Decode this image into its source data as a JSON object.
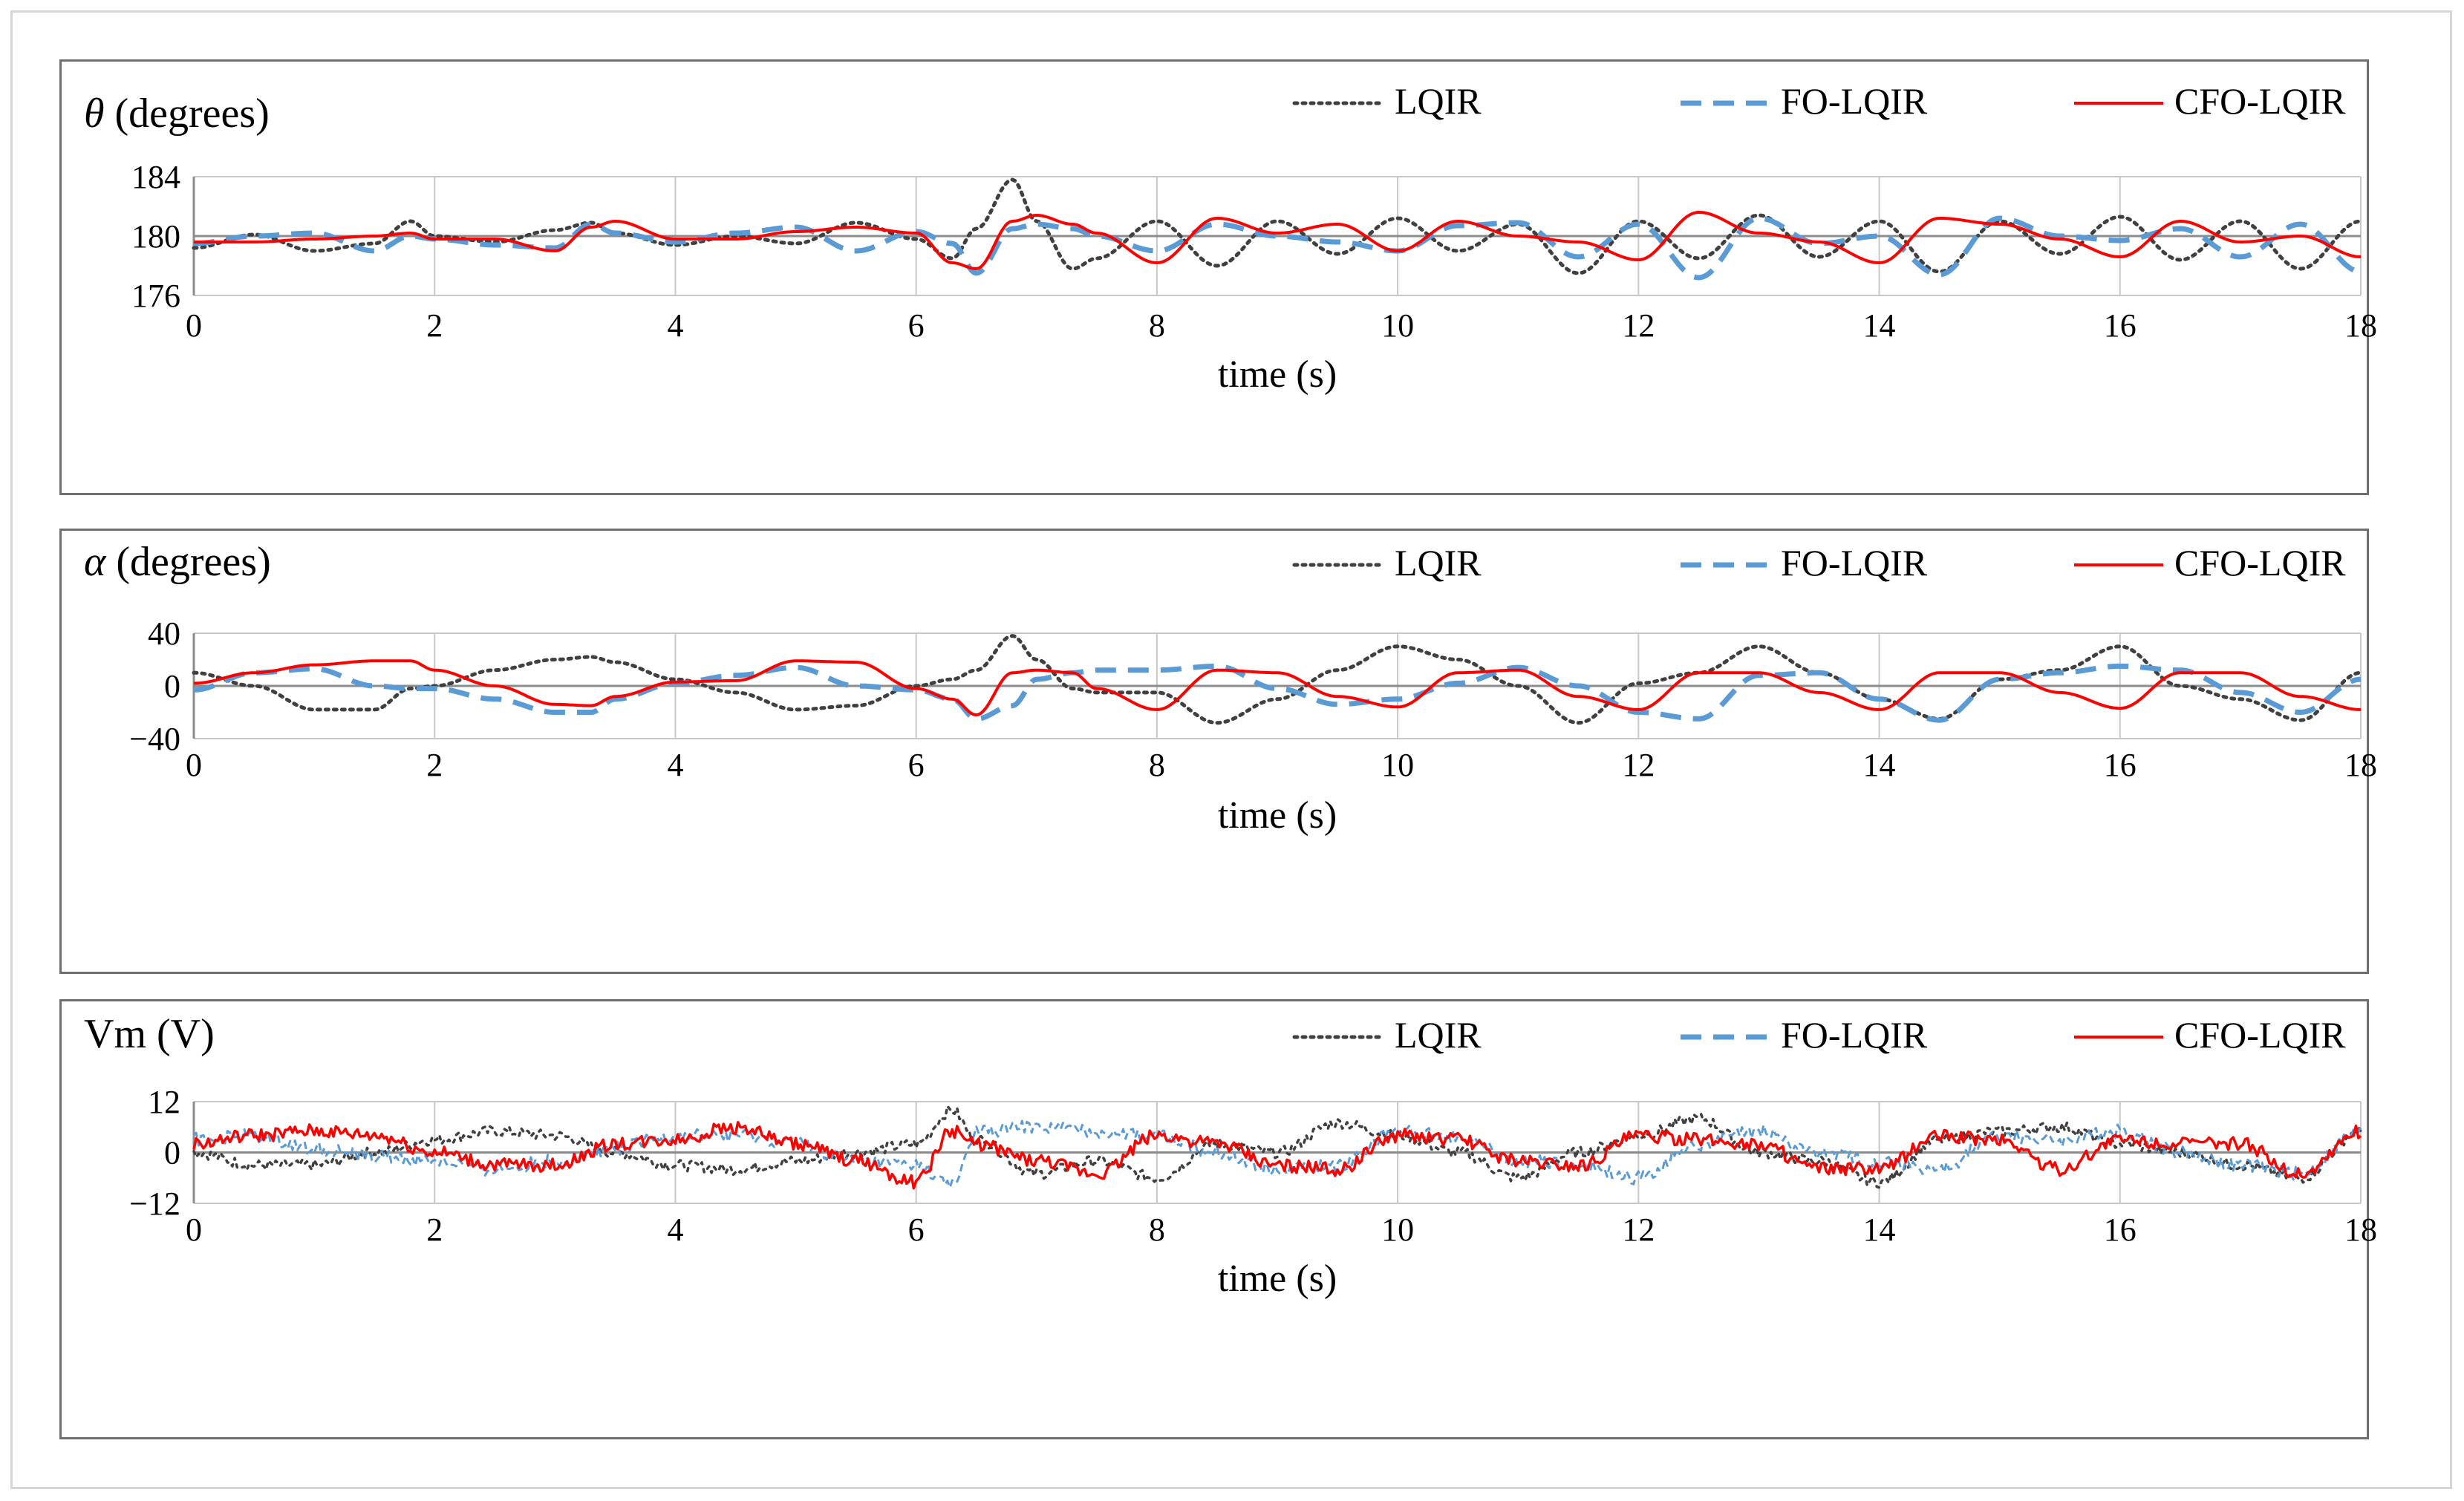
{
  "colors": {
    "lqir": "#404040",
    "fo_lqir": "#5b9bd5",
    "cfo_lqir": "#ff0000",
    "grid": "#c8c8c8",
    "zero_line": "#8c8c8c",
    "frame": "#6e6e6e"
  },
  "legend": [
    "LQIR",
    "FO-LQIR",
    "CFO-LQIR"
  ],
  "chart_data": [
    {
      "type": "line",
      "ylabel_symbol": "θ",
      "ylabel_unit": "(degrees)",
      "xlabel": "time (s)",
      "xlim": [
        0,
        18
      ],
      "ylim": [
        176,
        184
      ],
      "xticks": [
        "0",
        "2",
        "4",
        "6",
        "8",
        "10",
        "12",
        "14",
        "16",
        "18"
      ],
      "yticks": [
        "176",
        "180",
        "184"
      ],
      "x": [
        0,
        0.5,
        1,
        1.5,
        1.8,
        2,
        2.5,
        3,
        3.3,
        3.5,
        4,
        4.5,
        5,
        5.5,
        6,
        6.3,
        6.5,
        6.8,
        7,
        7.3,
        7.5,
        8,
        8.5,
        9,
        9.5,
        10,
        10.5,
        11,
        11.5,
        12,
        12.5,
        13,
        13.5,
        14,
        14.5,
        15,
        15.5,
        16,
        16.5,
        17,
        17.5,
        18
      ],
      "series": [
        {
          "name": "LQIR",
          "style": "dotted",
          "values": [
            179.2,
            180.1,
            179.0,
            179.5,
            181.0,
            180.0,
            179.6,
            180.4,
            180.9,
            180.2,
            179.4,
            180.0,
            179.5,
            180.9,
            179.8,
            178.5,
            180.5,
            183.8,
            181.0,
            177.8,
            178.5,
            181.0,
            178.0,
            181.0,
            178.8,
            181.2,
            179.0,
            180.8,
            177.5,
            181.0,
            178.5,
            181.4,
            178.6,
            181.0,
            177.6,
            181.0,
            178.8,
            181.3,
            178.4,
            181.0,
            177.8,
            181.0
          ]
        },
        {
          "name": "FO-LQIR",
          "style": "dashed",
          "values": [
            179.5,
            180.0,
            180.2,
            179.0,
            180.0,
            179.8,
            179.4,
            179.2,
            180.8,
            180.2,
            179.6,
            180.2,
            180.6,
            179.0,
            180.3,
            179.5,
            177.5,
            180.5,
            180.8,
            180.5,
            180.0,
            179.0,
            180.8,
            180.0,
            179.6,
            179.0,
            180.7,
            180.9,
            178.6,
            180.8,
            177.2,
            181.2,
            179.5,
            180.0,
            177.4,
            181.2,
            180.0,
            179.7,
            180.5,
            178.6,
            180.8,
            177.6
          ]
        },
        {
          "name": "CFO-LQIR",
          "style": "solid",
          "values": [
            179.6,
            179.6,
            179.8,
            180.0,
            180.2,
            179.8,
            179.8,
            179.0,
            180.6,
            181.0,
            179.8,
            179.8,
            180.3,
            180.6,
            180.2,
            178.2,
            177.8,
            181.0,
            181.4,
            180.8,
            180.2,
            178.2,
            181.2,
            180.2,
            180.8,
            179.0,
            181.0,
            180.0,
            179.6,
            178.4,
            181.6,
            180.2,
            179.6,
            178.2,
            181.2,
            180.8,
            179.8,
            178.6,
            181.0,
            179.6,
            180.0,
            178.6
          ]
        }
      ]
    },
    {
      "type": "line",
      "ylabel_symbol": "α",
      "ylabel_unit": "(degrees)",
      "xlabel": "time (s)",
      "xlim": [
        0,
        18
      ],
      "ylim": [
        -40,
        40
      ],
      "xticks": [
        "0",
        "2",
        "4",
        "6",
        "8",
        "10",
        "12",
        "14",
        "16",
        "18"
      ],
      "yticks": [
        "−40",
        "0",
        "40"
      ],
      "x": [
        0,
        0.5,
        1,
        1.5,
        1.8,
        2,
        2.5,
        3,
        3.3,
        3.5,
        4,
        4.5,
        5,
        5.5,
        6,
        6.3,
        6.5,
        6.8,
        7,
        7.3,
        7.5,
        8,
        8.5,
        9,
        9.5,
        10,
        10.5,
        11,
        11.5,
        12,
        12.5,
        13,
        13.5,
        14,
        14.5,
        15,
        15.5,
        16,
        16.5,
        17,
        17.5,
        18
      ],
      "series": [
        {
          "name": "LQIR",
          "style": "dotted",
          "values": [
            10,
            0,
            -18,
            -18,
            -2,
            0,
            12,
            20,
            22,
            18,
            5,
            -5,
            -18,
            -15,
            0,
            5,
            12,
            38,
            20,
            -2,
            -5,
            -5,
            -28,
            -10,
            12,
            30,
            20,
            0,
            -28,
            2,
            10,
            30,
            10,
            -10,
            -25,
            5,
            12,
            30,
            0,
            -10,
            -26,
            10
          ]
        },
        {
          "name": "FO-LQIR",
          "style": "dashed",
          "values": [
            -3,
            10,
            13,
            0,
            -2,
            -2,
            -10,
            -20,
            -20,
            -10,
            2,
            8,
            14,
            0,
            -3,
            -10,
            -25,
            -15,
            5,
            10,
            12,
            12,
            15,
            -2,
            -14,
            -10,
            2,
            14,
            0,
            -20,
            -25,
            8,
            10,
            -10,
            -26,
            5,
            10,
            15,
            12,
            -5,
            -20,
            5
          ]
        },
        {
          "name": "CFO-LQIR",
          "style": "solid",
          "values": [
            2,
            10,
            16,
            19,
            19,
            12,
            0,
            -14,
            -15,
            -8,
            3,
            4,
            19,
            18,
            -2,
            -10,
            -22,
            10,
            12,
            10,
            -2,
            -18,
            12,
            10,
            -8,
            -16,
            10,
            12,
            -8,
            -18,
            10,
            10,
            -5,
            -18,
            10,
            10,
            -5,
            -17,
            10,
            10,
            -8,
            -18
          ]
        }
      ]
    },
    {
      "type": "line",
      "ylabel_text": "Vm (V)",
      "xlabel": "time (s)",
      "xlim": [
        0,
        18
      ],
      "ylim": [
        -12,
        12
      ],
      "xticks": [
        "0",
        "2",
        "4",
        "6",
        "8",
        "10",
        "12",
        "14",
        "16",
        "18"
      ],
      "yticks": [
        "−12",
        "0",
        "12"
      ],
      "x": [
        0,
        0.5,
        1,
        1.5,
        2,
        2.5,
        3,
        3.5,
        4,
        4.5,
        5,
        5.5,
        6,
        6.3,
        6.5,
        7,
        7.5,
        8,
        8.5,
        9,
        9.5,
        10,
        10.5,
        11,
        11.5,
        12,
        12.5,
        13,
        13.5,
        14,
        14.5,
        15,
        15.5,
        16,
        16.5,
        17,
        17.5,
        18
      ],
      "series": [
        {
          "name": "LQIR",
          "style": "dotted",
          "noise": 1.3,
          "values": [
            0,
            -3,
            -3,
            0,
            3,
            5,
            4,
            0,
            -3,
            -4,
            -2,
            0,
            2,
            10,
            3,
            -5,
            -2,
            -6,
            2,
            0,
            7,
            4,
            0,
            -6,
            0,
            4,
            8,
            0,
            -2,
            -7,
            3,
            5,
            6,
            2,
            0,
            -3,
            -6,
            5
          ]
        },
        {
          "name": "FO-LQIR",
          "style": "dashed",
          "noise": 1.6,
          "values": [
            3,
            4,
            1,
            -1,
            -2,
            -4,
            -2,
            1,
            4,
            4,
            2,
            -2,
            -3,
            -8,
            5,
            6,
            5,
            4,
            0,
            -4,
            -3,
            5,
            4,
            -2,
            -3,
            -6,
            2,
            5,
            0,
            -2,
            -4,
            4,
            3,
            5,
            0,
            -3,
            -5,
            5
          ]
        },
        {
          "name": "CFO-LQIR",
          "style": "solid",
          "noise": 1.6,
          "values": [
            2,
            4,
            5,
            4,
            0,
            -3,
            -3,
            2,
            3,
            6,
            2,
            -2,
            -7,
            5,
            2,
            -2,
            -5,
            4,
            2,
            -3,
            -4,
            4,
            3,
            -2,
            -3,
            4,
            3,
            2,
            -4,
            -4,
            4,
            3,
            -4,
            3,
            2,
            2,
            -5,
            5
          ]
        }
      ]
    }
  ]
}
